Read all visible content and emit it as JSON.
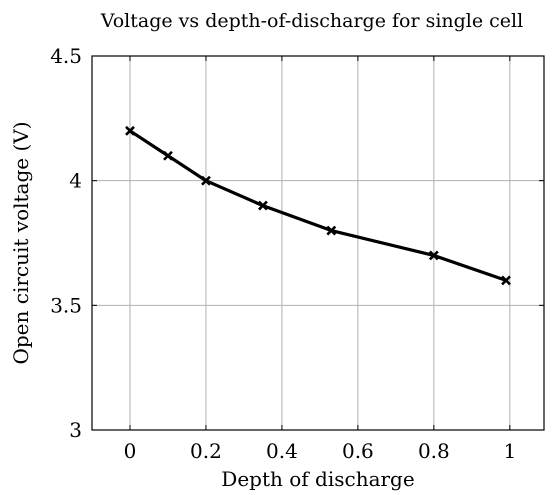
{
  "chart_data": {
    "type": "line",
    "title": "Voltage vs depth-of-discharge for single cell",
    "xlabel": "Depth of discharge",
    "ylabel": "Open circuit voltage (V)",
    "xlim": [
      -0.1,
      1.09
    ],
    "ylim": [
      3,
      4.5
    ],
    "xticks": [
      0,
      0.2,
      0.4,
      0.6,
      0.8,
      1
    ],
    "xtick_labels": [
      "0",
      "0.2",
      "0.4",
      "0.6",
      "0.8",
      "1"
    ],
    "yticks": [
      3,
      3.5,
      4,
      4.5
    ],
    "ytick_labels": [
      "3",
      "3.5",
      "4",
      "4.5"
    ],
    "grid": true,
    "series": [
      {
        "marker": "x",
        "color": "#000000",
        "x": [
          0,
          0.1,
          0.2,
          0.35,
          0.53,
          0.8,
          0.99
        ],
        "y": [
          4.2,
          4.1,
          4.0,
          3.9,
          3.8,
          3.7,
          3.6
        ]
      }
    ]
  }
}
